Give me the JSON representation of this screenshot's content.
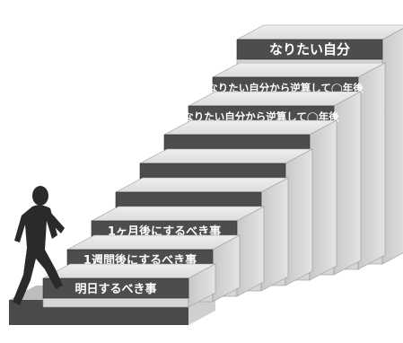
{
  "steps": [
    {
      "label": "明日するべき事"
    },
    {
      "label": "1週間後にするべき事"
    },
    {
      "label": "1ヶ月後にするべき事"
    },
    {
      "label": ""
    },
    {
      "label": ""
    },
    {
      "label": ""
    },
    {
      "label": "なりたい自分から逆算して◯年後"
    },
    {
      "label": "なりたい自分から逆算して◯年後"
    },
    {
      "label": "なりたい自分"
    }
  ]
}
